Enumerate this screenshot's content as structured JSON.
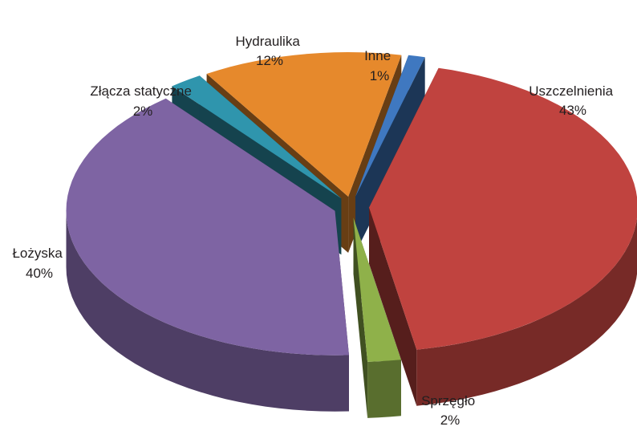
{
  "chart_data": {
    "type": "pie",
    "title": "",
    "slices": [
      {
        "name": "Uszczelnienia",
        "value": 43,
        "value_label": "43%",
        "color": "#c0433f"
      },
      {
        "name": "Sprzęgło",
        "value": 2,
        "value_label": "2%",
        "color": "#8fb14a"
      },
      {
        "name": "Łożyska",
        "value": 40,
        "value_label": "40%",
        "color": "#7e64a3"
      },
      {
        "name": "Złącza statyczne",
        "value": 2,
        "value_label": "2%",
        "color": "#2f95ad"
      },
      {
        "name": "Hydraulika",
        "value": 12,
        "value_label": "12%",
        "color": "#e6892c"
      },
      {
        "name": "Inne",
        "value": 1,
        "value_label": "1%",
        "color": "#3f78c0"
      }
    ],
    "exploded": true,
    "style": "3d",
    "legend": "none"
  }
}
